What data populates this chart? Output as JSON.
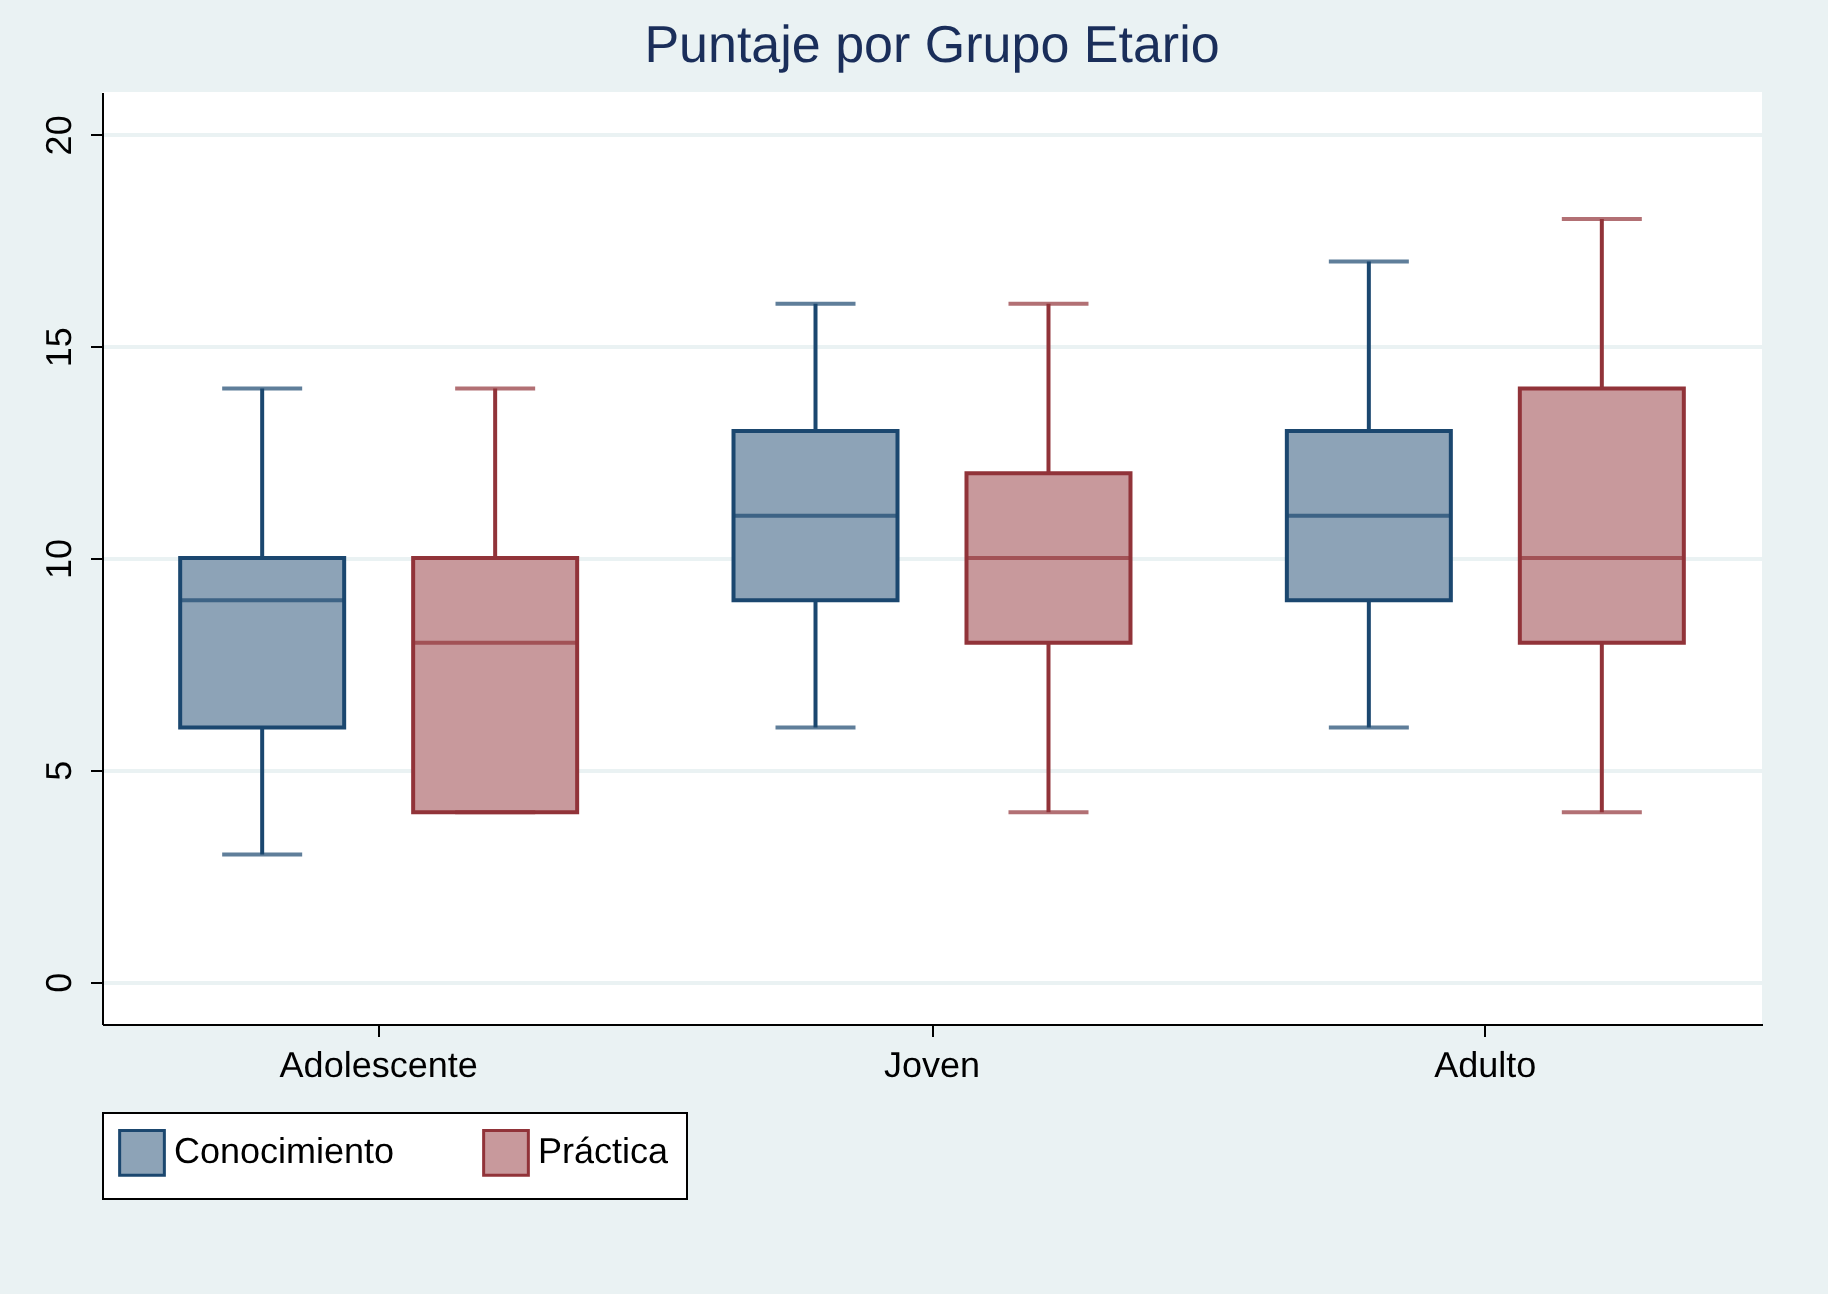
{
  "chart_data": {
    "type": "box",
    "title": "Puntaje por Grupo Etario",
    "categories": [
      "Adolescente",
      "Joven",
      "Adulto"
    ],
    "series": [
      {
        "name": "Conocimiento",
        "color": "#8da3b7",
        "boxes": [
          {
            "low": 3,
            "q1": 6,
            "median": 9,
            "q3": 10,
            "high": 14
          },
          {
            "low": 6,
            "q1": 9,
            "median": 11,
            "q3": 13,
            "high": 16
          },
          {
            "low": 6,
            "q1": 9,
            "median": 11,
            "q3": 13,
            "high": 17
          }
        ]
      },
      {
        "name": "Práctica",
        "color": "#c8999c",
        "boxes": [
          {
            "low": 4,
            "q1": 4,
            "median": 8,
            "q3": 10,
            "high": 14
          },
          {
            "low": 4,
            "q1": 8,
            "median": 10,
            "q3": 12,
            "high": 16
          },
          {
            "low": 4,
            "q1": 8,
            "median": 10,
            "q3": 14,
            "high": 18
          }
        ]
      }
    ],
    "ylim": [
      -1,
      21
    ],
    "yticks": [
      0,
      5,
      10,
      15,
      20
    ],
    "grid": "y",
    "legend": "bottom"
  }
}
